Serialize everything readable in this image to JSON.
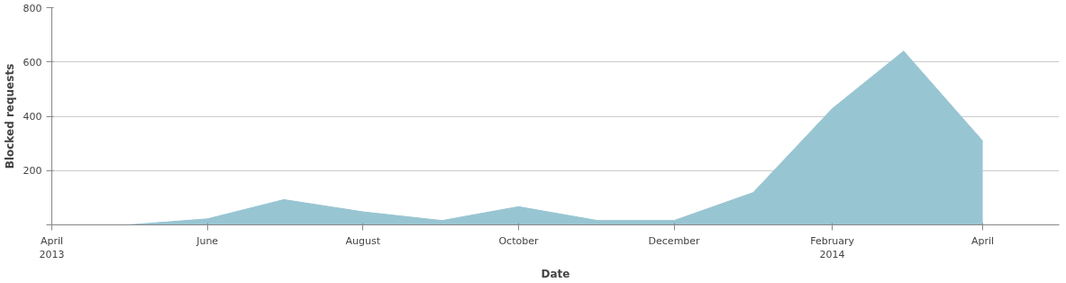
{
  "chart_data": {
    "type": "area",
    "xlabel": "Date",
    "ylabel": "Blocked requests",
    "x": [
      "2013-04",
      "2013-05",
      "2013-06",
      "2013-07",
      "2013-08",
      "2013-09",
      "2013-10",
      "2013-11",
      "2013-12",
      "2014-01",
      "2014-02",
      "2014-03",
      "2014-04"
    ],
    "series": [
      {
        "color": "#98c5d2",
        "values": [
          0,
          0,
          22,
          93,
          48,
          16,
          67,
          16,
          16,
          119,
          428,
          640,
          309
        ]
      }
    ],
    "xlim": [
      "2013-04",
      "2014-05"
    ],
    "xticks": [
      {
        "value": "2013-04",
        "label": "April\n2013"
      },
      {
        "value": "2013-06",
        "label": "June"
      },
      {
        "value": "2013-08",
        "label": "August"
      },
      {
        "value": "2013-10",
        "label": "October"
      },
      {
        "value": "2013-12",
        "label": "December"
      },
      {
        "value": "2014-02",
        "label": "February\n2014"
      },
      {
        "value": "2014-04",
        "label": "April"
      }
    ],
    "ylim": [
      0,
      800
    ],
    "yticks": [
      {
        "value": 0,
        "label": null
      },
      200,
      400,
      600,
      800
    ],
    "grid": "y"
  }
}
